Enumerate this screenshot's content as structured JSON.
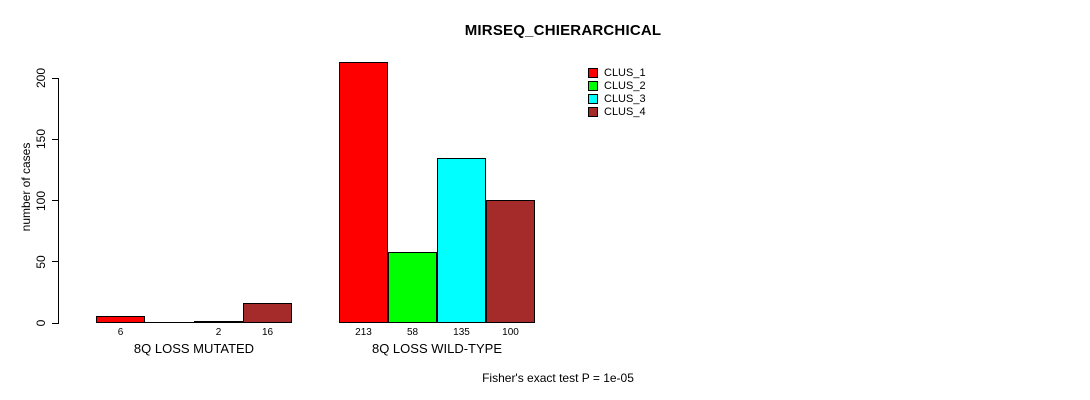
{
  "title": "MIRSEQ_CHIERARCHICAL",
  "annotation": "Fisher's exact test P = 1e-05",
  "colors": {
    "clus_1": "#FF0000",
    "clus_2": "#00FF00",
    "clus_3": "#00FFFF",
    "clus_4": "#A52A2A",
    "axis": "#000000",
    "background": "#FFFFFF"
  },
  "chart_data": {
    "type": "bar",
    "title": "MIRSEQ_CHIERARCHICAL",
    "xlabel": "",
    "ylabel": "number of cases",
    "categories": [
      "8Q LOSS MUTATED",
      "8Q LOSS WILD-TYPE"
    ],
    "series": [
      {
        "name": "CLUS_1",
        "color": "#FF0000",
        "values": [
          6,
          213
        ]
      },
      {
        "name": "CLUS_2",
        "color": "#00FF00",
        "values": [
          0,
          58
        ]
      },
      {
        "name": "CLUS_3",
        "color": "#00FFFF",
        "values": [
          2,
          135
        ]
      },
      {
        "name": "CLUS_4",
        "color": "#A52A2A",
        "values": [
          16,
          100
        ]
      }
    ],
    "bar_value_labels": [
      [
        "6",
        "",
        "2",
        "16"
      ],
      [
        "213",
        "58",
        "135",
        "100"
      ]
    ],
    "yticks": [
      0,
      50,
      100,
      150,
      200
    ],
    "ylim": [
      0,
      215
    ],
    "grid": false,
    "legend_position": "top-right",
    "legend_entries": [
      "CLUS_1",
      "CLUS_2",
      "CLUS_3",
      "CLUS_4"
    ],
    "annotation": "Fisher's exact test P = 1e-05"
  }
}
